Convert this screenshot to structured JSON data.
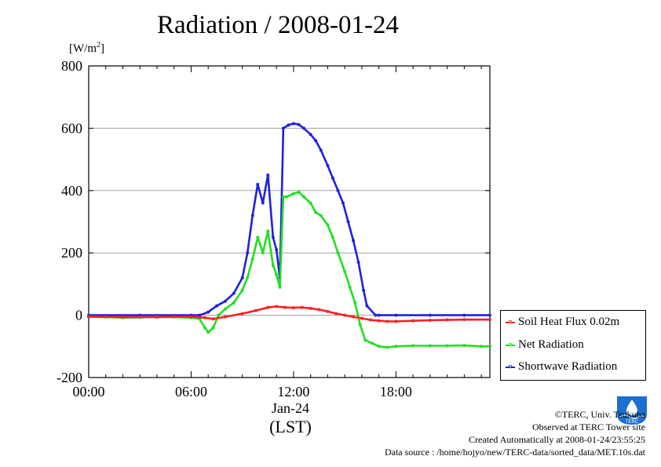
{
  "title": "Radiation / 2008-01-24",
  "unit_label": "[W/m",
  "unit_sup": "2",
  "unit_close": "]",
  "chart_data": {
    "type": "line",
    "title": "Radiation / 2008-01-24",
    "ylabel": "[W/m2]",
    "xlabel": "(LST)",
    "date_label": "Jan-24",
    "ylim": [
      -200,
      800
    ],
    "xlim_hours": [
      0,
      23.5
    ],
    "yticks": [
      -200,
      0,
      200,
      400,
      600,
      800
    ],
    "ytick_labels": [
      "-200",
      "0",
      "200",
      "400",
      "600",
      "800"
    ],
    "xticks_hours": [
      0,
      6,
      12,
      18
    ],
    "xtick_labels": [
      "00:00",
      "06:00",
      "12:00",
      "18:00"
    ],
    "grid": true,
    "legend_position": "bottom-right",
    "series": [
      {
        "name": "Soil Heat Flux 0.02m",
        "color": "#ff2020",
        "points": [
          [
            0,
            -5
          ],
          [
            2,
            -6
          ],
          [
            4,
            -6
          ],
          [
            6,
            -5
          ],
          [
            6.8,
            -8
          ],
          [
            7.3,
            -12
          ],
          [
            8,
            -5
          ],
          [
            9,
            5
          ],
          [
            9.8,
            15
          ],
          [
            10.5,
            25
          ],
          [
            11,
            28
          ],
          [
            11.5,
            25
          ],
          [
            12,
            24
          ],
          [
            12.5,
            25
          ],
          [
            13,
            22
          ],
          [
            13.5,
            18
          ],
          [
            14,
            12
          ],
          [
            14.5,
            5
          ],
          [
            15,
            0
          ],
          [
            15.5,
            -5
          ],
          [
            16,
            -10
          ],
          [
            16.5,
            -15
          ],
          [
            17,
            -18
          ],
          [
            17.5,
            -20
          ],
          [
            18,
            -20
          ],
          [
            19,
            -18
          ],
          [
            20,
            -16
          ],
          [
            21,
            -15
          ],
          [
            22,
            -14
          ],
          [
            23.5,
            -14
          ]
        ]
      },
      {
        "name": "Net Radiation",
        "color": "#20e020",
        "points": [
          [
            0,
            -5
          ],
          [
            1,
            -6
          ],
          [
            2,
            -8
          ],
          [
            3,
            -7
          ],
          [
            4,
            -6
          ],
          [
            5,
            -6
          ],
          [
            6,
            -8
          ],
          [
            6.5,
            -12
          ],
          [
            6.8,
            -40
          ],
          [
            7,
            -55
          ],
          [
            7.3,
            -40
          ],
          [
            7.6,
            0
          ],
          [
            8,
            20
          ],
          [
            8.5,
            40
          ],
          [
            9,
            80
          ],
          [
            9.3,
            120
          ],
          [
            9.6,
            180
          ],
          [
            9.9,
            250
          ],
          [
            10.2,
            200
          ],
          [
            10.5,
            270
          ],
          [
            10.8,
            160
          ],
          [
            11,
            130
          ],
          [
            11.2,
            90
          ],
          [
            11.4,
            380
          ],
          [
            11.6,
            380
          ],
          [
            12,
            390
          ],
          [
            12.3,
            395
          ],
          [
            12.6,
            380
          ],
          [
            13,
            360
          ],
          [
            13.3,
            330
          ],
          [
            13.6,
            320
          ],
          [
            14,
            290
          ],
          [
            14.3,
            250
          ],
          [
            14.6,
            200
          ],
          [
            15,
            140
          ],
          [
            15.3,
            90
          ],
          [
            15.6,
            40
          ],
          [
            15.9,
            -30
          ],
          [
            16.2,
            -80
          ],
          [
            16.6,
            -90
          ],
          [
            17,
            -100
          ],
          [
            17.5,
            -103
          ],
          [
            18,
            -100
          ],
          [
            19,
            -98
          ],
          [
            20,
            -98
          ],
          [
            21,
            -98
          ],
          [
            22,
            -97
          ],
          [
            23,
            -100
          ],
          [
            23.5,
            -100
          ]
        ]
      },
      {
        "name": "Shortwave Radiation",
        "color": "#2020e0",
        "points": [
          [
            0,
            0
          ],
          [
            3,
            0
          ],
          [
            6,
            0
          ],
          [
            6.5,
            0
          ],
          [
            7,
            10
          ],
          [
            7.5,
            30
          ],
          [
            8,
            45
          ],
          [
            8.5,
            70
          ],
          [
            9,
            120
          ],
          [
            9.3,
            200
          ],
          [
            9.6,
            320
          ],
          [
            9.9,
            420
          ],
          [
            10.2,
            360
          ],
          [
            10.5,
            450
          ],
          [
            10.8,
            250
          ],
          [
            11,
            210
          ],
          [
            11.2,
            120
          ],
          [
            11.4,
            600
          ],
          [
            11.7,
            610
          ],
          [
            12,
            615
          ],
          [
            12.3,
            612
          ],
          [
            12.6,
            600
          ],
          [
            13,
            580
          ],
          [
            13.3,
            560
          ],
          [
            13.6,
            530
          ],
          [
            14,
            480
          ],
          [
            14.3,
            440
          ],
          [
            14.6,
            400
          ],
          [
            14.9,
            360
          ],
          [
            15.2,
            300
          ],
          [
            15.5,
            240
          ],
          [
            15.8,
            170
          ],
          [
            16.1,
            80
          ],
          [
            16.3,
            30
          ],
          [
            16.8,
            0
          ],
          [
            17,
            0
          ],
          [
            18,
            0
          ],
          [
            20,
            0
          ],
          [
            22,
            0
          ],
          [
            23.5,
            0
          ]
        ]
      }
    ]
  },
  "date_label": "Jan-24",
  "lst_label": "(LST)",
  "legend": [
    {
      "label": "Soil Heat Flux 0.02m",
      "color": "#ff2020"
    },
    {
      "label": "Net Radiation",
      "color": "#20e020"
    },
    {
      "label": "Shortwave Radiation",
      "color": "#2020e0"
    }
  ],
  "credits": {
    "copyright": "©TERC, Univ. Tsukuba",
    "observed": "Observed at TERC Tower site",
    "created": "Created Automatically at 2008-01-24/23:55:25",
    "source": "Data source : /home/hojyo/new/TERC-data/sorted_data/MET.10s.dat"
  },
  "logo_text": "TERC",
  "colors": {
    "grid": "#a0a0a0",
    "axis": "#000000",
    "logo_blue": "#1a6fd0"
  }
}
